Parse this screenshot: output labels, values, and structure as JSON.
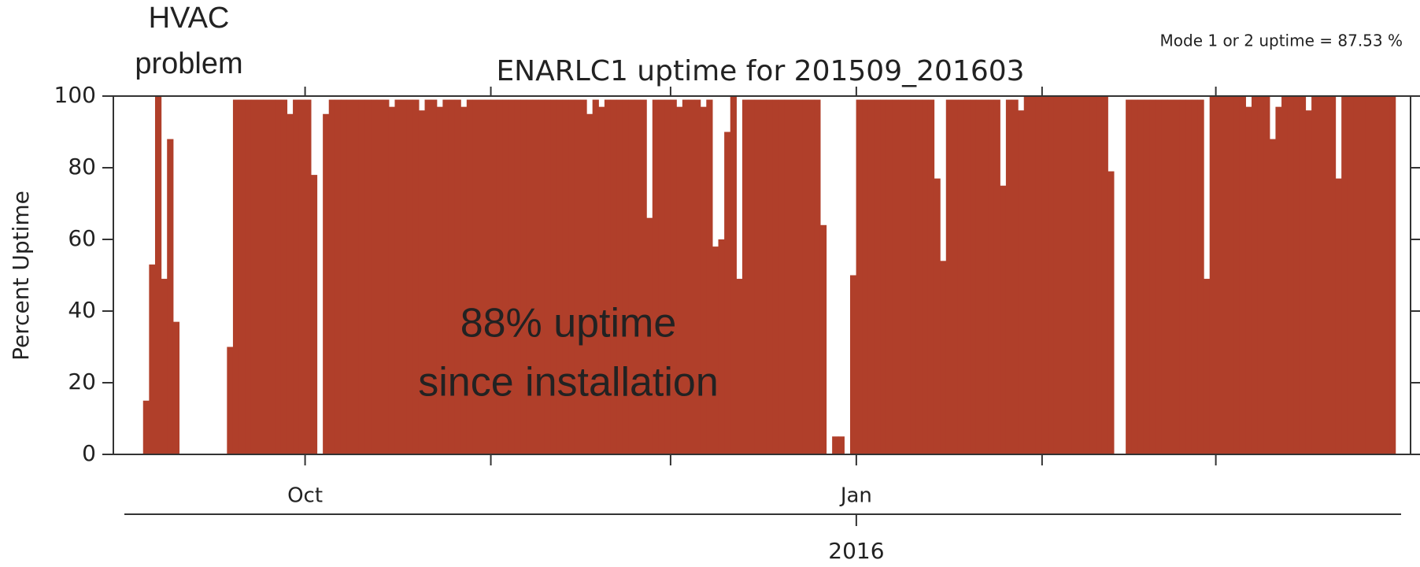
{
  "chart_data": {
    "type": "bar",
    "title": "ENARLC1 uptime for 201509_201603",
    "note": "Mode 1 or 2 uptime = 87.53 %",
    "ylabel": "Percent Uptime",
    "annotations": [
      {
        "lines": [
          "HVAC",
          "problem"
        ]
      },
      {
        "lines": [
          "88% uptime",
          "since installation"
        ]
      }
    ],
    "color": "#b03f2a",
    "xlim": [
      -2,
      214.5
    ],
    "xticks": [
      {
        "value": 30,
        "label": "Oct"
      },
      61,
      91,
      {
        "value": 122,
        "label": "Jan"
      },
      153,
      182
    ],
    "xticks2": [
      {
        "value": 122,
        "label": "2016"
      }
    ],
    "ylim": [
      0,
      100
    ],
    "yticks": [
      0,
      20,
      40,
      60,
      80,
      100
    ],
    "values": [
      0,
      0,
      0,
      15,
      53,
      100,
      49,
      88,
      37,
      0,
      0,
      0,
      0,
      0,
      0,
      0,
      0,
      30,
      99,
      99,
      99,
      99,
      99,
      99,
      99,
      99,
      99,
      95,
      99,
      99,
      99,
      78,
      0,
      95,
      99,
      99,
      99,
      99,
      99,
      99,
      99,
      99,
      99,
      99,
      97,
      99,
      99,
      99,
      99,
      96,
      99,
      99,
      97,
      99,
      99,
      99,
      97,
      99,
      99,
      99,
      99,
      99,
      99,
      99,
      99,
      99,
      99,
      99,
      99,
      99,
      99,
      99,
      99,
      99,
      99,
      99,
      99,
      95,
      99,
      97,
      99,
      99,
      99,
      99,
      99,
      99,
      99,
      66,
      99,
      99,
      99,
      99,
      97,
      99,
      99,
      99,
      97,
      99,
      58,
      60,
      90,
      100,
      49,
      99,
      99,
      99,
      99,
      99,
      99,
      99,
      99,
      99,
      99,
      99,
      99,
      99,
      64,
      0,
      5,
      5,
      0,
      50,
      99,
      99,
      99,
      99,
      99,
      99,
      99,
      99,
      99,
      99,
      99,
      99,
      99,
      77,
      54,
      99,
      99,
      99,
      99,
      99,
      99,
      99,
      99,
      99,
      75,
      99,
      99,
      96,
      100,
      100,
      100,
      100,
      100,
      100,
      100,
      100,
      100,
      100,
      100,
      100,
      100,
      100,
      79,
      0,
      0,
      99,
      99,
      99,
      99,
      99,
      99,
      99,
      99,
      99,
      99,
      99,
      99,
      99,
      49,
      100,
      100,
      100,
      100,
      100,
      100,
      97,
      100,
      100,
      100,
      88,
      97,
      100,
      100,
      100,
      100,
      96,
      100,
      100,
      100,
      100,
      77,
      100,
      100,
      100,
      100,
      100,
      100,
      100,
      100,
      100
    ]
  }
}
